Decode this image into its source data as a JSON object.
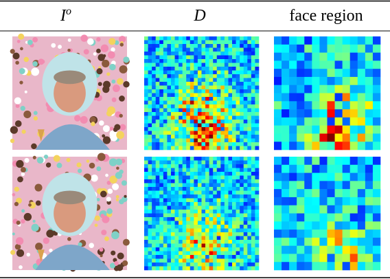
{
  "header": {
    "col0": {
      "base": "I",
      "sup": "o"
    },
    "col1": "D",
    "col2": "face region"
  }
}
